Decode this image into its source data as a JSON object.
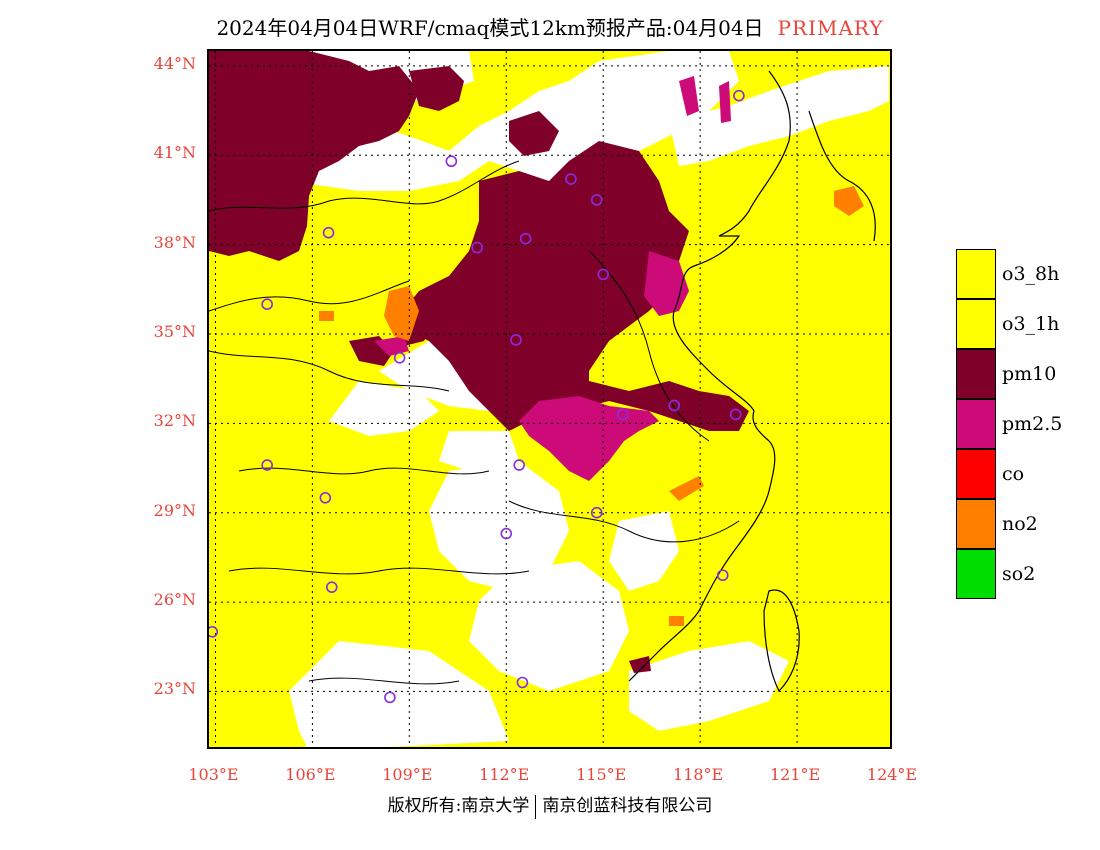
{
  "title": {
    "text": "2024年04月04日WRF/cmaq模式12km预报产品:04月04日",
    "tag": "PRIMARY"
  },
  "axes": {
    "lat_ticks": [
      "44°N",
      "41°N",
      "38°N",
      "35°N",
      "32°N",
      "29°N",
      "26°N",
      "23°N"
    ],
    "lon_ticks": [
      "103°E",
      "106°E",
      "109°E",
      "112°E",
      "115°E",
      "118°E",
      "121°E",
      "124°E"
    ],
    "lat_range": [
      21,
      44.5
    ],
    "lon_range": [
      102.8,
      124
    ]
  },
  "legend": {
    "items": [
      {
        "label": "o3_8h",
        "color": "#ffff00"
      },
      {
        "label": "o3_1h",
        "color": "#ffff00"
      },
      {
        "label": "pm10",
        "color": "#7f0029"
      },
      {
        "label": "pm2.5",
        "color": "#cc0a78"
      },
      {
        "label": "co",
        "color": "#ff0000"
      },
      {
        "label": "no2",
        "color": "#ff7f00"
      },
      {
        "label": "so2",
        "color": "#00dd00"
      }
    ]
  },
  "colors": {
    "o3": "#ffff00",
    "pm10": "#7f0029",
    "pm25": "#cc0a78",
    "no2": "#ff7f00",
    "station": "#8a2be2",
    "accent_red": "#e8443a"
  },
  "stations": [
    {
      "lon": 119.2,
      "lat": 43.0
    },
    {
      "lon": 110.3,
      "lat": 40.8
    },
    {
      "lon": 114.0,
      "lat": 40.2
    },
    {
      "lon": 114.8,
      "lat": 39.5
    },
    {
      "lon": 106.5,
      "lat": 38.4
    },
    {
      "lon": 111.1,
      "lat": 37.9
    },
    {
      "lon": 112.6,
      "lat": 38.2
    },
    {
      "lon": 115.0,
      "lat": 37.0
    },
    {
      "lon": 104.6,
      "lat": 36.0
    },
    {
      "lon": 112.3,
      "lat": 34.8
    },
    {
      "lon": 108.7,
      "lat": 34.2
    },
    {
      "lon": 115.6,
      "lat": 32.3
    },
    {
      "lon": 117.2,
      "lat": 32.6
    },
    {
      "lon": 119.1,
      "lat": 32.3
    },
    {
      "lon": 104.6,
      "lat": 30.6
    },
    {
      "lon": 112.4,
      "lat": 30.6
    },
    {
      "lon": 106.4,
      "lat": 29.5
    },
    {
      "lon": 114.8,
      "lat": 29.0
    },
    {
      "lon": 112.0,
      "lat": 28.3
    },
    {
      "lon": 118.7,
      "lat": 26.9
    },
    {
      "lon": 106.6,
      "lat": 26.5
    },
    {
      "lon": 102.9,
      "lat": 25.0
    },
    {
      "lon": 108.4,
      "lat": 22.8
    },
    {
      "lon": 112.5,
      "lat": 23.3
    }
  ],
  "copyright": {
    "left": "版权所有:南京大学",
    "right": "南京创蓝科技有限公司"
  }
}
